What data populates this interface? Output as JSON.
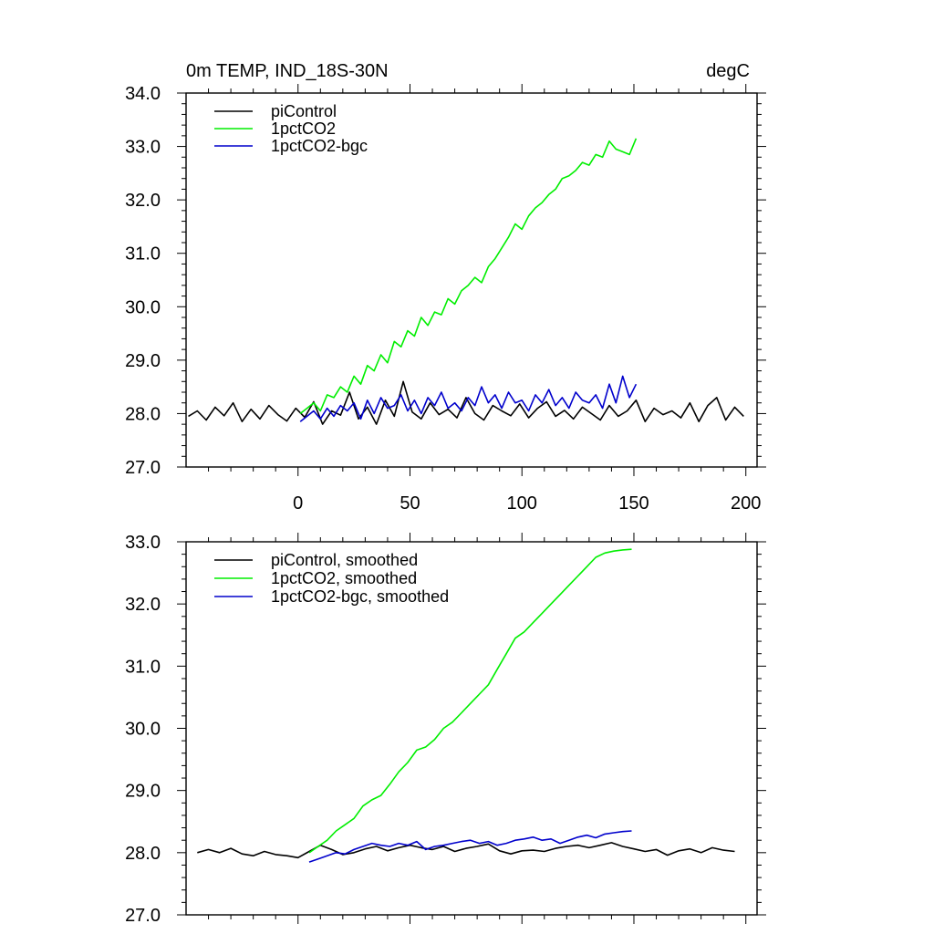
{
  "chart_data": [
    {
      "type": "line",
      "title": "0m TEMP, IND_18S-30N",
      "units": "degC",
      "xlim": [
        -50,
        205
      ],
      "ylim": [
        27.0,
        34.0
      ],
      "xticks": [
        0,
        50,
        100,
        150,
        200
      ],
      "xtick_labels": [
        "0",
        "50",
        "100",
        "150",
        "200"
      ],
      "yticks": [
        27.0,
        28.0,
        29.0,
        30.0,
        31.0,
        32.0,
        33.0,
        34.0
      ],
      "ytick_labels": [
        "27.0",
        "28.0",
        "29.0",
        "30.0",
        "31.0",
        "32.0",
        "33.0",
        "34.0"
      ],
      "legend_position": "top-left",
      "grid": false,
      "series": [
        {
          "name": "piControl",
          "color": "#000000",
          "x_start": -49,
          "x_end": 199,
          "x_step": 4,
          "values": [
            27.95,
            28.05,
            27.88,
            28.12,
            27.96,
            28.2,
            27.85,
            28.08,
            27.9,
            28.15,
            27.98,
            27.86,
            28.1,
            27.93,
            28.22,
            27.8,
            28.05,
            27.97,
            28.4,
            27.9,
            28.12,
            27.8,
            28.25,
            27.95,
            28.6,
            28.03,
            27.9,
            28.2,
            27.98,
            28.08,
            27.92,
            28.3,
            28.0,
            27.88,
            28.15,
            28.05,
            27.96,
            28.18,
            27.92,
            28.1,
            28.22,
            27.95,
            28.06,
            27.9,
            28.12,
            28.0,
            27.88,
            28.15,
            27.95,
            28.05,
            28.25,
            27.85,
            28.1,
            27.98,
            28.05,
            27.92,
            28.2,
            27.85,
            28.15,
            28.3,
            27.88,
            28.12,
            27.95
          ]
        },
        {
          "name": "1pctCO2",
          "color": "#00ee00",
          "x_start": 1,
          "x_end": 151,
          "x_step": 3,
          "values": [
            28.0,
            28.1,
            28.2,
            28.05,
            28.35,
            28.3,
            28.5,
            28.4,
            28.7,
            28.55,
            28.9,
            28.8,
            29.1,
            28.95,
            29.35,
            29.25,
            29.55,
            29.45,
            29.8,
            29.65,
            29.9,
            29.85,
            30.15,
            30.05,
            30.3,
            30.4,
            30.55,
            30.45,
            30.75,
            30.9,
            31.1,
            31.3,
            31.55,
            31.45,
            31.7,
            31.85,
            31.95,
            32.1,
            32.2,
            32.4,
            32.45,
            32.55,
            32.7,
            32.65,
            32.85,
            32.8,
            33.1,
            32.95,
            32.9,
            32.85,
            33.15
          ]
        },
        {
          "name": "1pctCO2-bgc",
          "color": "#0000cc",
          "x_start": 1,
          "x_end": 151,
          "x_step": 3,
          "values": [
            27.85,
            27.95,
            28.05,
            27.9,
            28.1,
            27.95,
            28.15,
            28.05,
            28.2,
            27.9,
            28.25,
            28.0,
            28.3,
            28.1,
            28.15,
            28.35,
            28.05,
            28.25,
            28.0,
            28.3,
            28.15,
            28.4,
            28.1,
            28.2,
            28.05,
            28.3,
            28.15,
            28.5,
            28.2,
            28.35,
            28.1,
            28.4,
            28.2,
            28.25,
            28.05,
            28.35,
            28.2,
            28.45,
            28.15,
            28.3,
            28.1,
            28.4,
            28.25,
            28.2,
            28.35,
            28.1,
            28.55,
            28.2,
            28.7,
            28.3,
            28.55
          ]
        }
      ]
    },
    {
      "type": "line",
      "xlim": [
        -50,
        205
      ],
      "ylim": [
        27.0,
        33.0
      ],
      "xticks": [
        0,
        50,
        100,
        150,
        200
      ],
      "yticks": [
        27.0,
        28.0,
        29.0,
        30.0,
        31.0,
        32.0,
        33.0
      ],
      "ytick_labels": [
        "27.0",
        "28.0",
        "29.0",
        "30.0",
        "31.0",
        "32.0",
        "33.0"
      ],
      "legend_position": "top-left",
      "grid": false,
      "series": [
        {
          "name": "piControl, smoothed",
          "color": "#000000",
          "x_start": -45,
          "x_end": 195,
          "x_step": 5,
          "values": [
            28.0,
            28.05,
            28.0,
            28.07,
            27.98,
            27.95,
            28.02,
            27.97,
            27.95,
            27.92,
            28.02,
            28.12,
            28.05,
            27.97,
            28.0,
            28.06,
            28.1,
            28.03,
            28.08,
            28.12,
            28.08,
            28.05,
            28.1,
            28.02,
            28.07,
            28.1,
            28.14,
            28.03,
            27.98,
            28.03,
            28.04,
            28.02,
            28.07,
            28.1,
            28.12,
            28.08,
            28.12,
            28.16,
            28.1,
            28.06,
            28.02,
            28.05,
            27.96,
            28.03,
            28.06,
            28.0,
            28.08,
            28.04,
            28.02
          ]
        },
        {
          "name": "1pctCO2, smoothed",
          "color": "#00ee00",
          "x_start": 5,
          "x_end": 149,
          "x_step": 4,
          "values": [
            28.0,
            28.1,
            28.2,
            28.35,
            28.45,
            28.55,
            28.75,
            28.85,
            28.92,
            29.1,
            29.3,
            29.45,
            29.65,
            29.7,
            29.82,
            30.0,
            30.1,
            30.25,
            30.4,
            30.55,
            30.7,
            30.95,
            31.2,
            31.45,
            31.55,
            31.7,
            31.85,
            32.0,
            32.15,
            32.3,
            32.45,
            32.6,
            32.75,
            32.82,
            32.85,
            32.87,
            32.88
          ]
        },
        {
          "name": "1pctCO2-bgc, smoothed",
          "color": "#0000cc",
          "x_start": 5,
          "x_end": 149,
          "x_step": 4,
          "values": [
            27.85,
            27.9,
            27.95,
            28.0,
            27.98,
            28.05,
            28.1,
            28.15,
            28.12,
            28.1,
            28.15,
            28.12,
            28.18,
            28.05,
            28.1,
            28.12,
            28.15,
            28.18,
            28.2,
            28.15,
            28.18,
            28.12,
            28.15,
            28.2,
            28.22,
            28.25,
            28.2,
            28.22,
            28.15,
            28.2,
            28.25,
            28.28,
            28.24,
            28.3,
            28.32,
            28.34,
            28.35
          ]
        }
      ]
    }
  ]
}
